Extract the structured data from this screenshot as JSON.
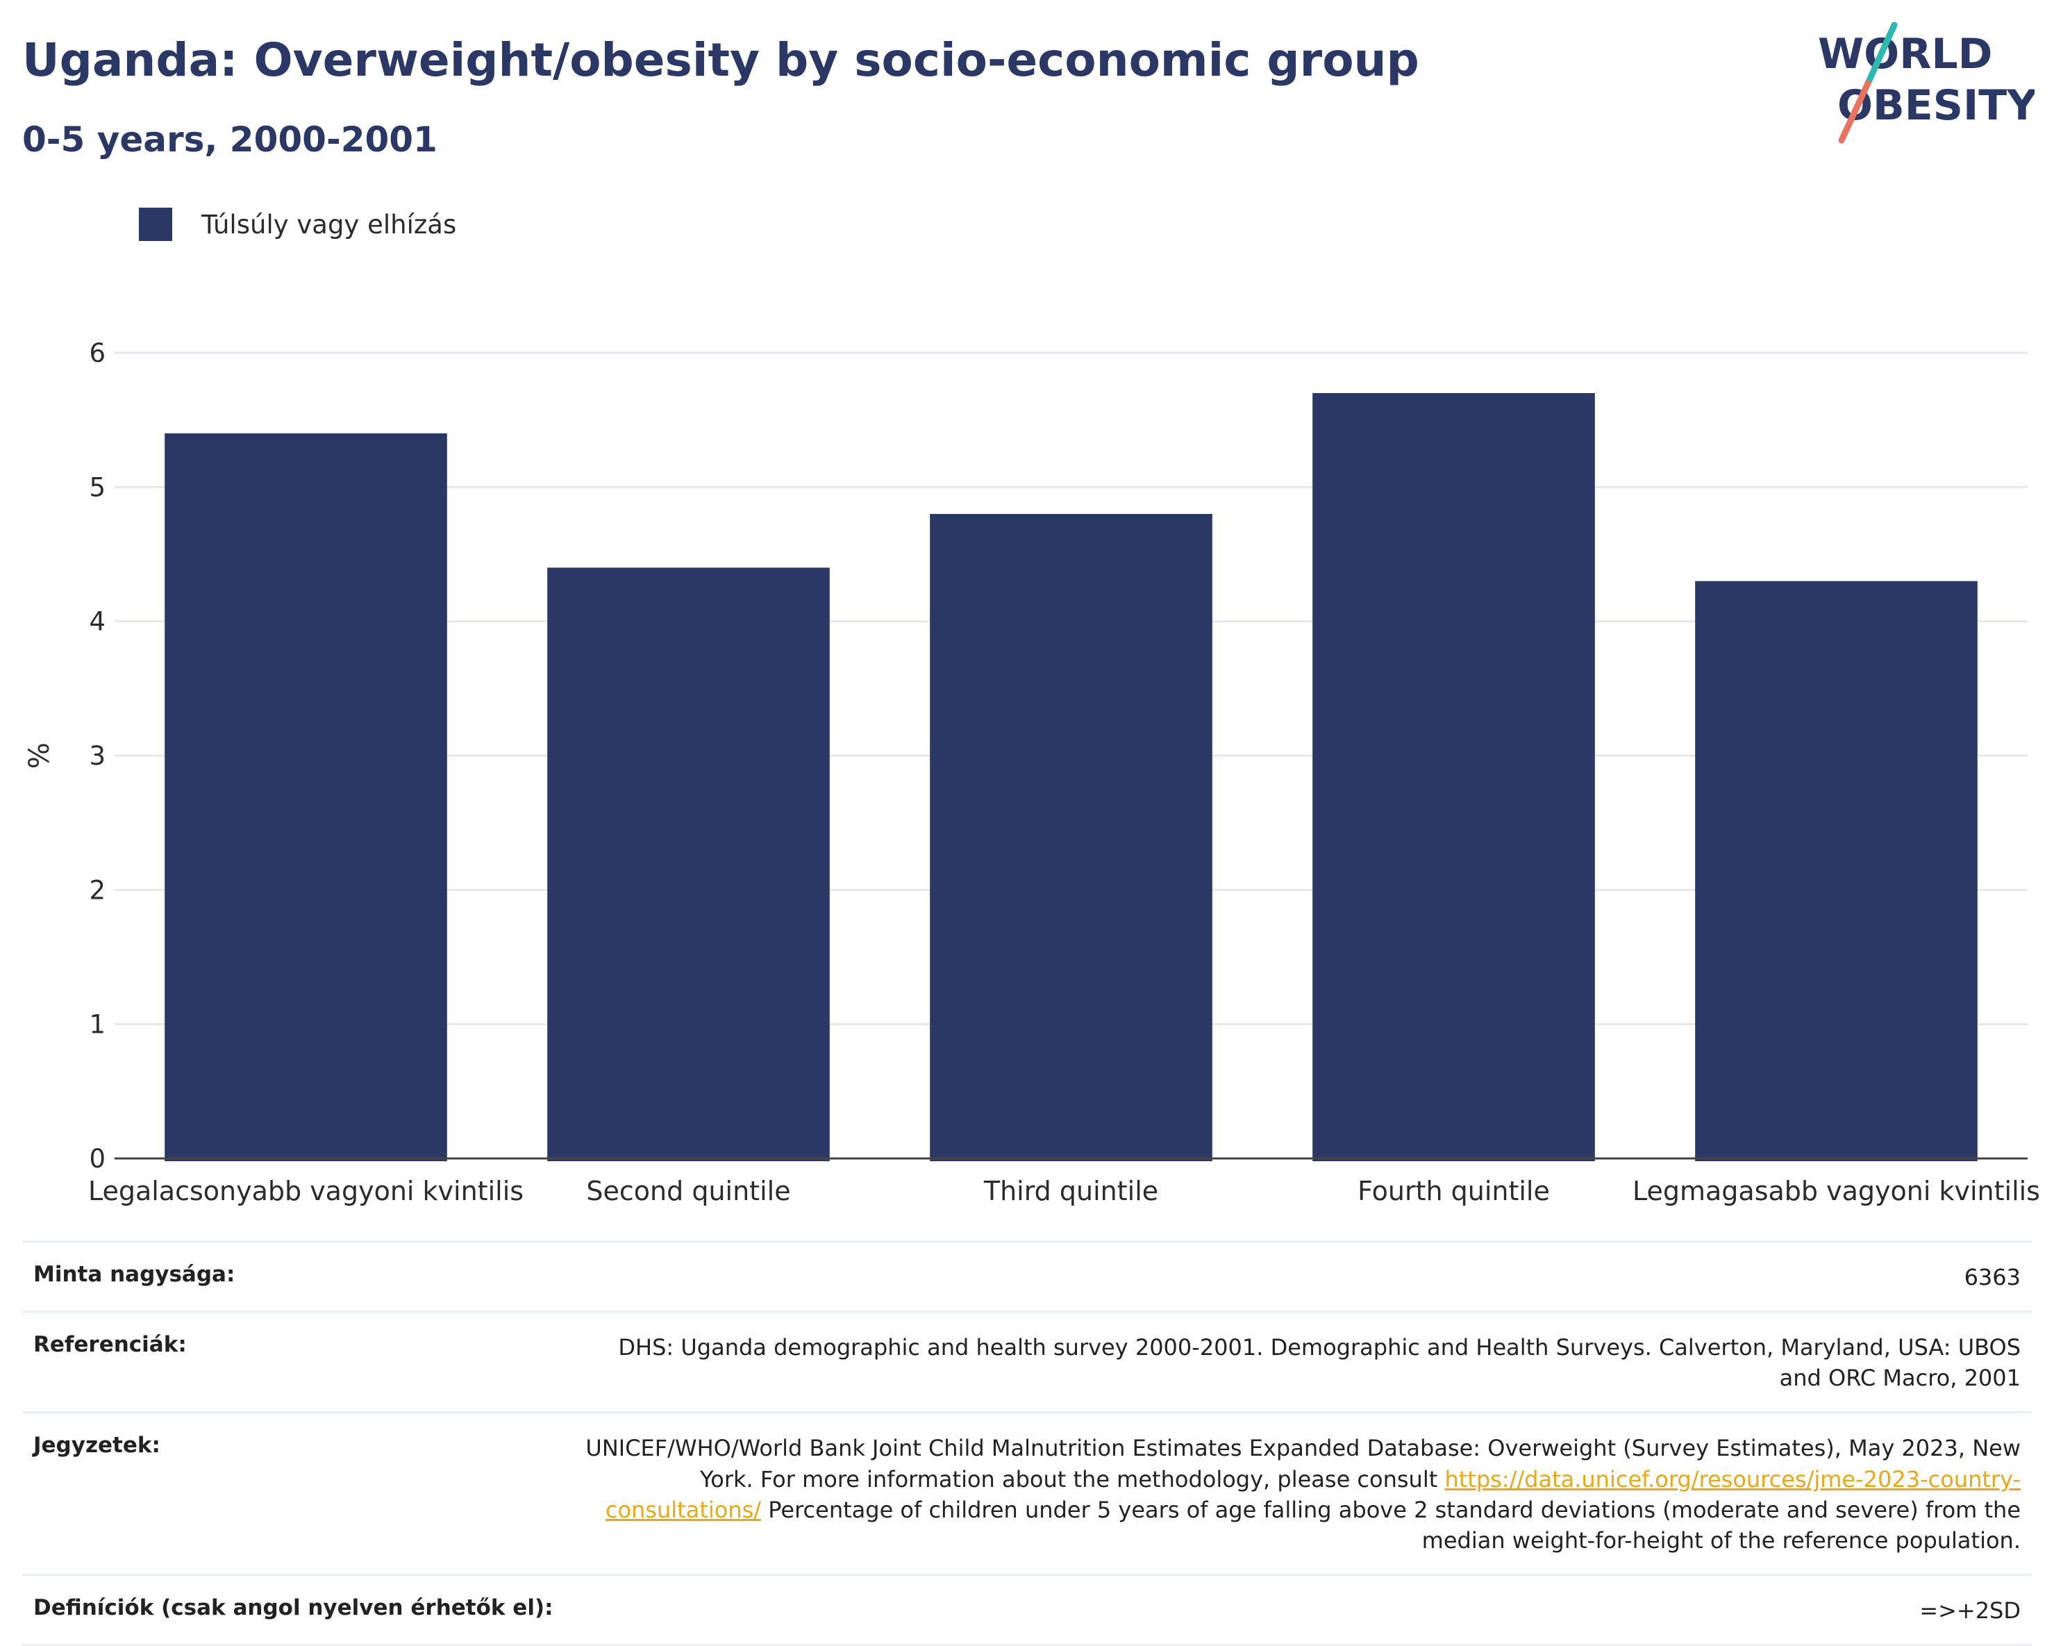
{
  "header": {
    "title": "Uganda: Overweight/obesity by socio-economic group",
    "subtitle": "0-5 years, 2000-2001"
  },
  "logo": {
    "line1": "WORLD",
    "line2": "OBESITY"
  },
  "legend": {
    "label": "Túlsúly vagy elhízás"
  },
  "colors": {
    "bar": "#2b3764",
    "grid": "#e6e8ee",
    "axis": "#444444",
    "logo_teal": "#2fb8b0",
    "logo_coral": "#e8735e",
    "link": "#e8a817"
  },
  "chart_data": {
    "type": "bar",
    "ylabel": "%",
    "ylim": [
      0,
      6
    ],
    "yticks": [
      "0",
      "1",
      "2",
      "3",
      "4",
      "5",
      "6"
    ],
    "categories": [
      "Legalacsonyabb vagyoni kvintilis",
      "Second quintile",
      "Third quintile",
      "Fourth quintile",
      "Legmagasabb vagyoni kvintilis"
    ],
    "series": [
      {
        "name": "Túlsúly vagy elhízás",
        "values": [
          5.4,
          4.4,
          4.8,
          5.7,
          4.3
        ]
      }
    ],
    "grid": true,
    "legend_position": "top-left"
  },
  "info": {
    "sample_label": "Minta nagysága:",
    "sample_value": "6363",
    "references_label": "Referenciák:",
    "references_value": "DHS: Uganda demographic and health survey 2000-2001. Demographic and Health Surveys. Calverton, Maryland, USA: UBOS and ORC Macro, 2001",
    "notes_label": "Jegyzetek:",
    "notes_text1": "UNICEF/WHO/World Bank Joint Child Malnutrition Estimates Expanded Database: Overweight (Survey Estimates), May 2023, New York. For more information about the methodology, please consult ",
    "notes_link": "https://data.unicef.org/resources/jme-2023-country-consultations/",
    "notes_text2": " Percentage of children under 5 years of age falling above 2 standard deviations (moderate and severe) from the median weight-for-height of the reference population.",
    "definitions_label": "Definíciók (csak angol nyelven érhetők el):",
    "definitions_value": "=>+2SD"
  }
}
